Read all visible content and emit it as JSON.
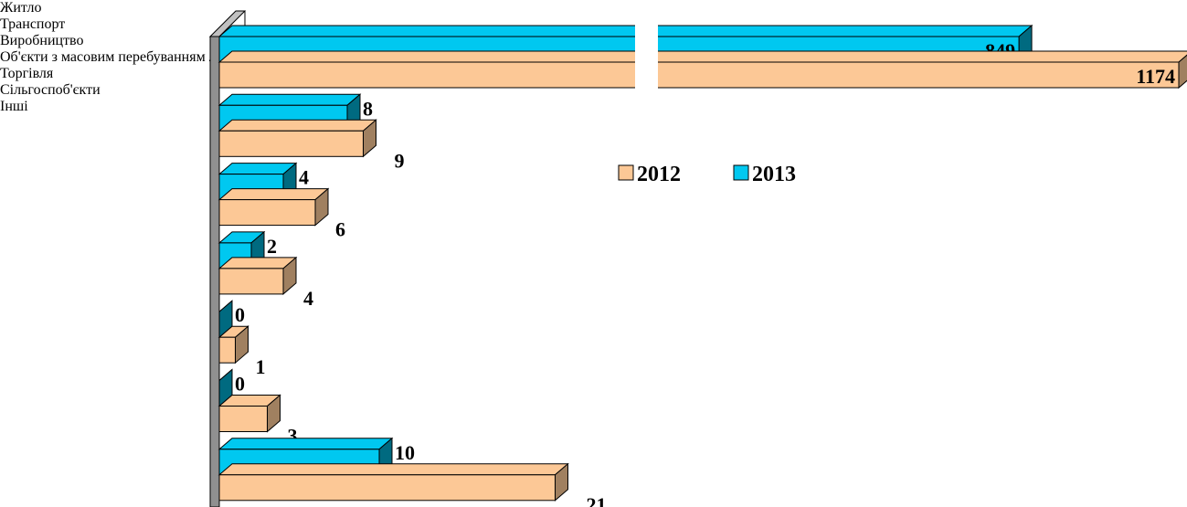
{
  "chart_data": {
    "type": "bar3d_horizontal",
    "categories": [
      "Житло",
      "Транспорт",
      "Виробництво",
      "Об'єкти з масовим перебуванням людей",
      "Торгівля",
      "Сільгоспоб'єкти",
      "Інші"
    ],
    "series": [
      {
        "name": "2012",
        "color": "#fcc896",
        "side_color": "#a08060",
        "values": [
          1174,
          9,
          6,
          4,
          1,
          3,
          21
        ]
      },
      {
        "name": "2013",
        "color": "#00c8f0",
        "side_color": "#006a80",
        "values": [
          849,
          8,
          4,
          2,
          0,
          0,
          10
        ]
      }
    ],
    "xlim": [
      0,
      1174
    ],
    "x_break": [
      26,
      115
    ],
    "legend": "right"
  }
}
